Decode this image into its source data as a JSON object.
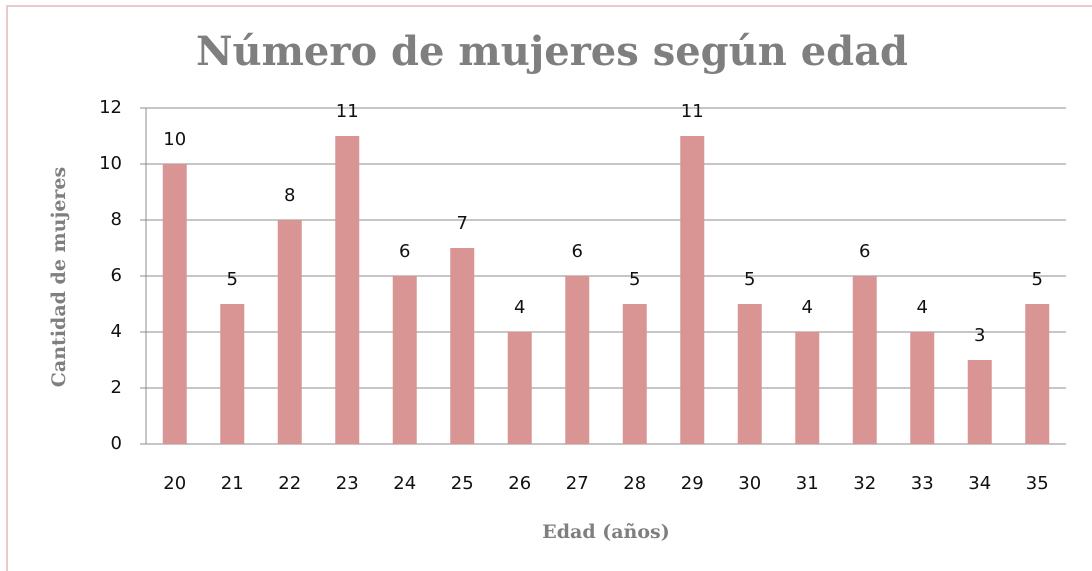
{
  "chart_data": {
    "type": "bar",
    "title": "Número de mujeres según edad",
    "x_label": "Edad (años)",
    "y_label": "Cantidad de mujeres",
    "categories": [
      "20",
      "21",
      "22",
      "23",
      "24",
      "25",
      "26",
      "27",
      "28",
      "29",
      "30",
      "31",
      "32",
      "33",
      "34",
      "35"
    ],
    "values": [
      10,
      5,
      8,
      11,
      6,
      7,
      4,
      6,
      5,
      11,
      5,
      4,
      6,
      4,
      3,
      5
    ],
    "color": "#d99594",
    "ylim": [
      0,
      12
    ],
    "yticks": [
      0,
      2,
      4,
      6,
      8,
      10,
      12
    ],
    "grid": true
  }
}
